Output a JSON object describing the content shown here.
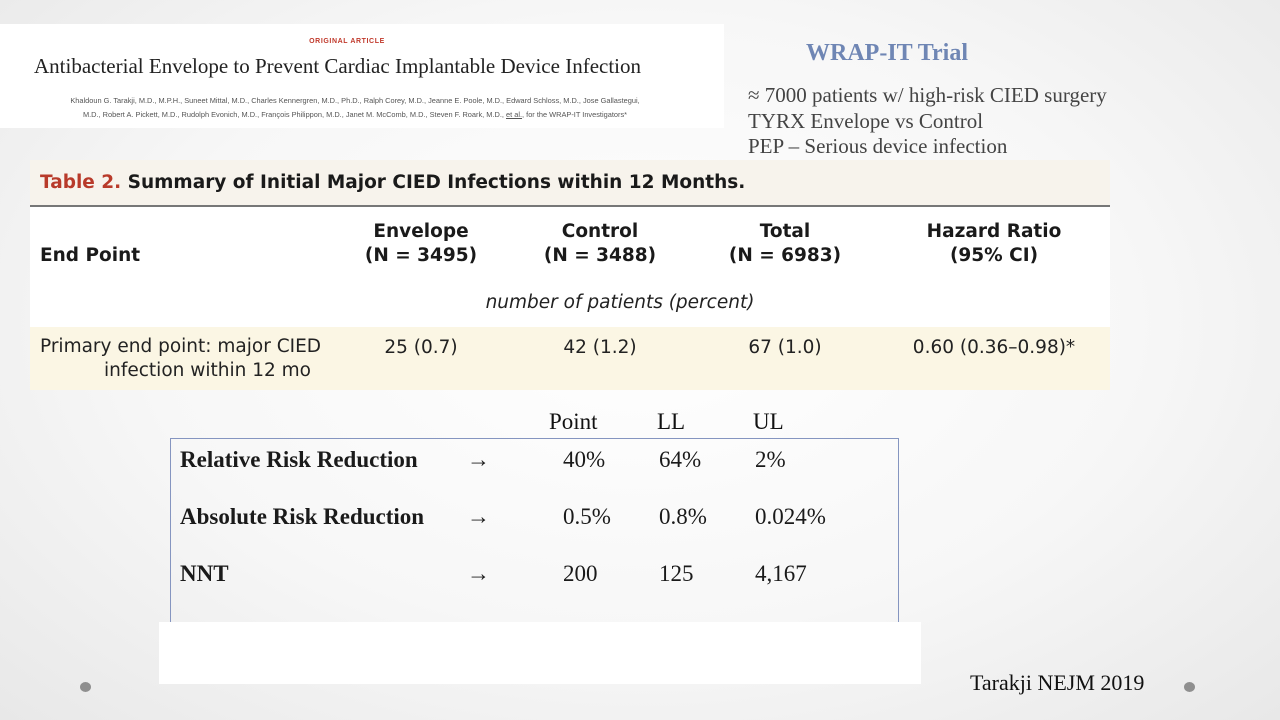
{
  "article": {
    "kicker": "ORIGINAL ARTICLE",
    "title": "Antibacterial Envelope to Prevent Cardiac Implantable Device Infection",
    "authors_line1": "Khaldoun G. Tarakji, M.D., M.P.H., Suneet Mittal, M.D., Charles Kennergren, M.D., Ph.D., Ralph Corey, M.D., Jeanne E. Poole, M.D., Edward Schloss, M.D., Jose Gallastegui,",
    "authors_line2_pre": "M.D., Robert A. Pickett, M.D., Rudolph Evonich, M.D., François Philippon, M.D., Janet M. McComb, M.D., Steven F. Roark, M.D.,",
    "authors_etal": "et al.",
    "authors_line2_post": ", for the WRAP-IT Investigators*"
  },
  "trial": {
    "title": "WRAP-IT Trial",
    "bullets": [
      "≈ 7000 patients w/ high-risk CIED surgery",
      "TYRX Envelope vs Control",
      "PEP – Serious device infection"
    ]
  },
  "table2": {
    "caption_label": "Table 2.",
    "caption_text": "Summary of Initial Major CIED Infections within 12 Months.",
    "headers": {
      "endpoint": "End Point",
      "envelope": "Envelope",
      "envelope_n": "(N = 3495)",
      "control": "Control",
      "control_n": "(N = 3488)",
      "total": "Total",
      "total_n": "(N = 6983)",
      "hr": "Hazard Ratio",
      "hr_ci": "(95% CI)"
    },
    "subheader": "number of patients (percent)",
    "row": {
      "endpoint_line1": "Primary end point: major CIED",
      "endpoint_line2": "infection within 12 mo",
      "envelope": "25 (0.7)",
      "control": "42 (1.2)",
      "total": "67 (1.0)",
      "hr": "0.60 (0.36–0.98)*"
    }
  },
  "calc": {
    "columns": [
      "Point",
      "LL",
      "UL"
    ],
    "arrow": "→",
    "rows": [
      {
        "label": "Relative Risk Reduction",
        "point": "40%",
        "ll": "64%",
        "ul": "2%"
      },
      {
        "label": "Absolute Risk Reduction",
        "point": "0.5%",
        "ll": "0.8%",
        "ul": "0.024%"
      },
      {
        "label": "NNT",
        "point": "200",
        "ll": "125",
        "ul": "4,167"
      }
    ]
  },
  "citation": "Tarakji NEJM 2019",
  "colors": {
    "trial_title": "#6f86b4",
    "table_label": "#b83a2a",
    "box_border": "#8595c0"
  }
}
